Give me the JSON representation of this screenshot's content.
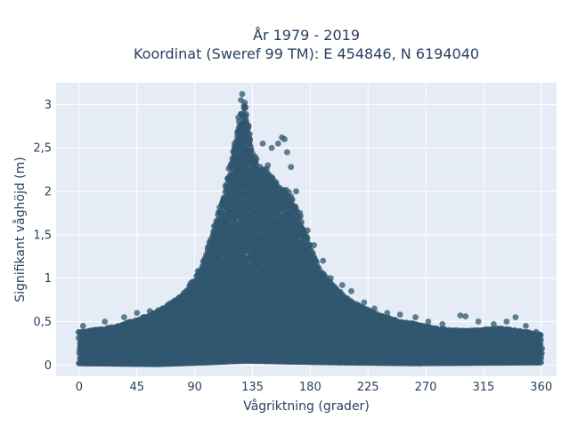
{
  "chart_data": {
    "type": "scatter",
    "title_line1": "År 1979 - 2019",
    "title_line2": "Koordinat (Sweref 99 TM): E 454846, N 6194040",
    "xlabel": "Vågriktning (grader)",
    "ylabel": "Signifikant våghöjd (m)",
    "xlim": [
      -18,
      372
    ],
    "ylim": [
      -0.13,
      3.25
    ],
    "xticks": [
      0,
      45,
      90,
      135,
      180,
      225,
      270,
      315,
      360
    ],
    "xtick_labels": [
      "0",
      "45",
      "90",
      "135",
      "180",
      "225",
      "270",
      "315",
      "360"
    ],
    "yticks": [
      0,
      0.5,
      1,
      1.5,
      2,
      2.5,
      3
    ],
    "ytick_labels": [
      "0",
      "0,5",
      "1",
      "1,5",
      "2",
      "2,5",
      "3"
    ],
    "grid": true,
    "point_opacity": 0.75,
    "envelope_upper": {
      "x": [
        0,
        10,
        20,
        30,
        40,
        50,
        60,
        70,
        80,
        90,
        95,
        100,
        105,
        110,
        115,
        120,
        125,
        128,
        130,
        135,
        140,
        145,
        150,
        155,
        160,
        165,
        170,
        175,
        180,
        185,
        190,
        200,
        210,
        220,
        230,
        240,
        250,
        260,
        270,
        280,
        290,
        300,
        310,
        320,
        330,
        340,
        350,
        360
      ],
      "y": [
        0.38,
        0.4,
        0.42,
        0.45,
        0.5,
        0.55,
        0.62,
        0.7,
        0.8,
        1.0,
        1.15,
        1.35,
        1.6,
        1.85,
        2.15,
        2.5,
        2.85,
        3.05,
        2.95,
        2.5,
        2.3,
        2.3,
        2.2,
        2.1,
        2.05,
        1.95,
        1.8,
        1.6,
        1.4,
        1.2,
        1.05,
        0.9,
        0.75,
        0.68,
        0.6,
        0.55,
        0.5,
        0.48,
        0.45,
        0.42,
        0.4,
        0.4,
        0.4,
        0.42,
        0.42,
        0.4,
        0.38,
        0.35
      ]
    },
    "envelope_lower": {
      "x": [
        0,
        60,
        100,
        130,
        160,
        200,
        260,
        360
      ],
      "y": [
        0.02,
        0.01,
        0.03,
        0.05,
        0.04,
        0.03,
        0.02,
        0.03
      ]
    },
    "outliers": [
      {
        "x": 3,
        "y": 0.45
      },
      {
        "x": 20,
        "y": 0.5
      },
      {
        "x": 35,
        "y": 0.55
      },
      {
        "x": 45,
        "y": 0.6
      },
      {
        "x": 55,
        "y": 0.62
      },
      {
        "x": 72,
        "y": 0.68
      },
      {
        "x": 85,
        "y": 0.85
      },
      {
        "x": 95,
        "y": 1.05
      },
      {
        "x": 100,
        "y": 1.25
      },
      {
        "x": 105,
        "y": 1.4
      },
      {
        "x": 110,
        "y": 1.6
      },
      {
        "x": 114,
        "y": 1.7
      },
      {
        "x": 118,
        "y": 2.15
      },
      {
        "x": 121,
        "y": 2.55
      },
      {
        "x": 124,
        "y": 2.85
      },
      {
        "x": 126,
        "y": 3.05
      },
      {
        "x": 127,
        "y": 3.12
      },
      {
        "x": 129,
        "y": 3.02
      },
      {
        "x": 132,
        "y": 2.75
      },
      {
        "x": 137,
        "y": 2.4
      },
      {
        "x": 143,
        "y": 2.55
      },
      {
        "x": 147,
        "y": 2.3
      },
      {
        "x": 150,
        "y": 2.5
      },
      {
        "x": 155,
        "y": 2.55
      },
      {
        "x": 158,
        "y": 2.62
      },
      {
        "x": 160,
        "y": 2.6
      },
      {
        "x": 162,
        "y": 2.45
      },
      {
        "x": 165,
        "y": 2.28
      },
      {
        "x": 169,
        "y": 2.0
      },
      {
        "x": 172,
        "y": 1.75
      },
      {
        "x": 178,
        "y": 1.55
      },
      {
        "x": 183,
        "y": 1.38
      },
      {
        "x": 190,
        "y": 1.2
      },
      {
        "x": 196,
        "y": 1.0
      },
      {
        "x": 205,
        "y": 0.92
      },
      {
        "x": 212,
        "y": 0.85
      },
      {
        "x": 222,
        "y": 0.72
      },
      {
        "x": 230,
        "y": 0.65
      },
      {
        "x": 240,
        "y": 0.6
      },
      {
        "x": 250,
        "y": 0.58
      },
      {
        "x": 262,
        "y": 0.55
      },
      {
        "x": 272,
        "y": 0.5
      },
      {
        "x": 283,
        "y": 0.47
      },
      {
        "x": 297,
        "y": 0.57
      },
      {
        "x": 301,
        "y": 0.56
      },
      {
        "x": 311,
        "y": 0.5
      },
      {
        "x": 323,
        "y": 0.47
      },
      {
        "x": 333,
        "y": 0.5
      },
      {
        "x": 340,
        "y": 0.55
      },
      {
        "x": 348,
        "y": 0.45
      },
      {
        "x": 356,
        "y": 0.38
      }
    ],
    "colors": {
      "point": "#30576f",
      "plot_bg": "#e5ecf6",
      "grid": "#ffffff",
      "text": "#2a3f5f"
    }
  }
}
